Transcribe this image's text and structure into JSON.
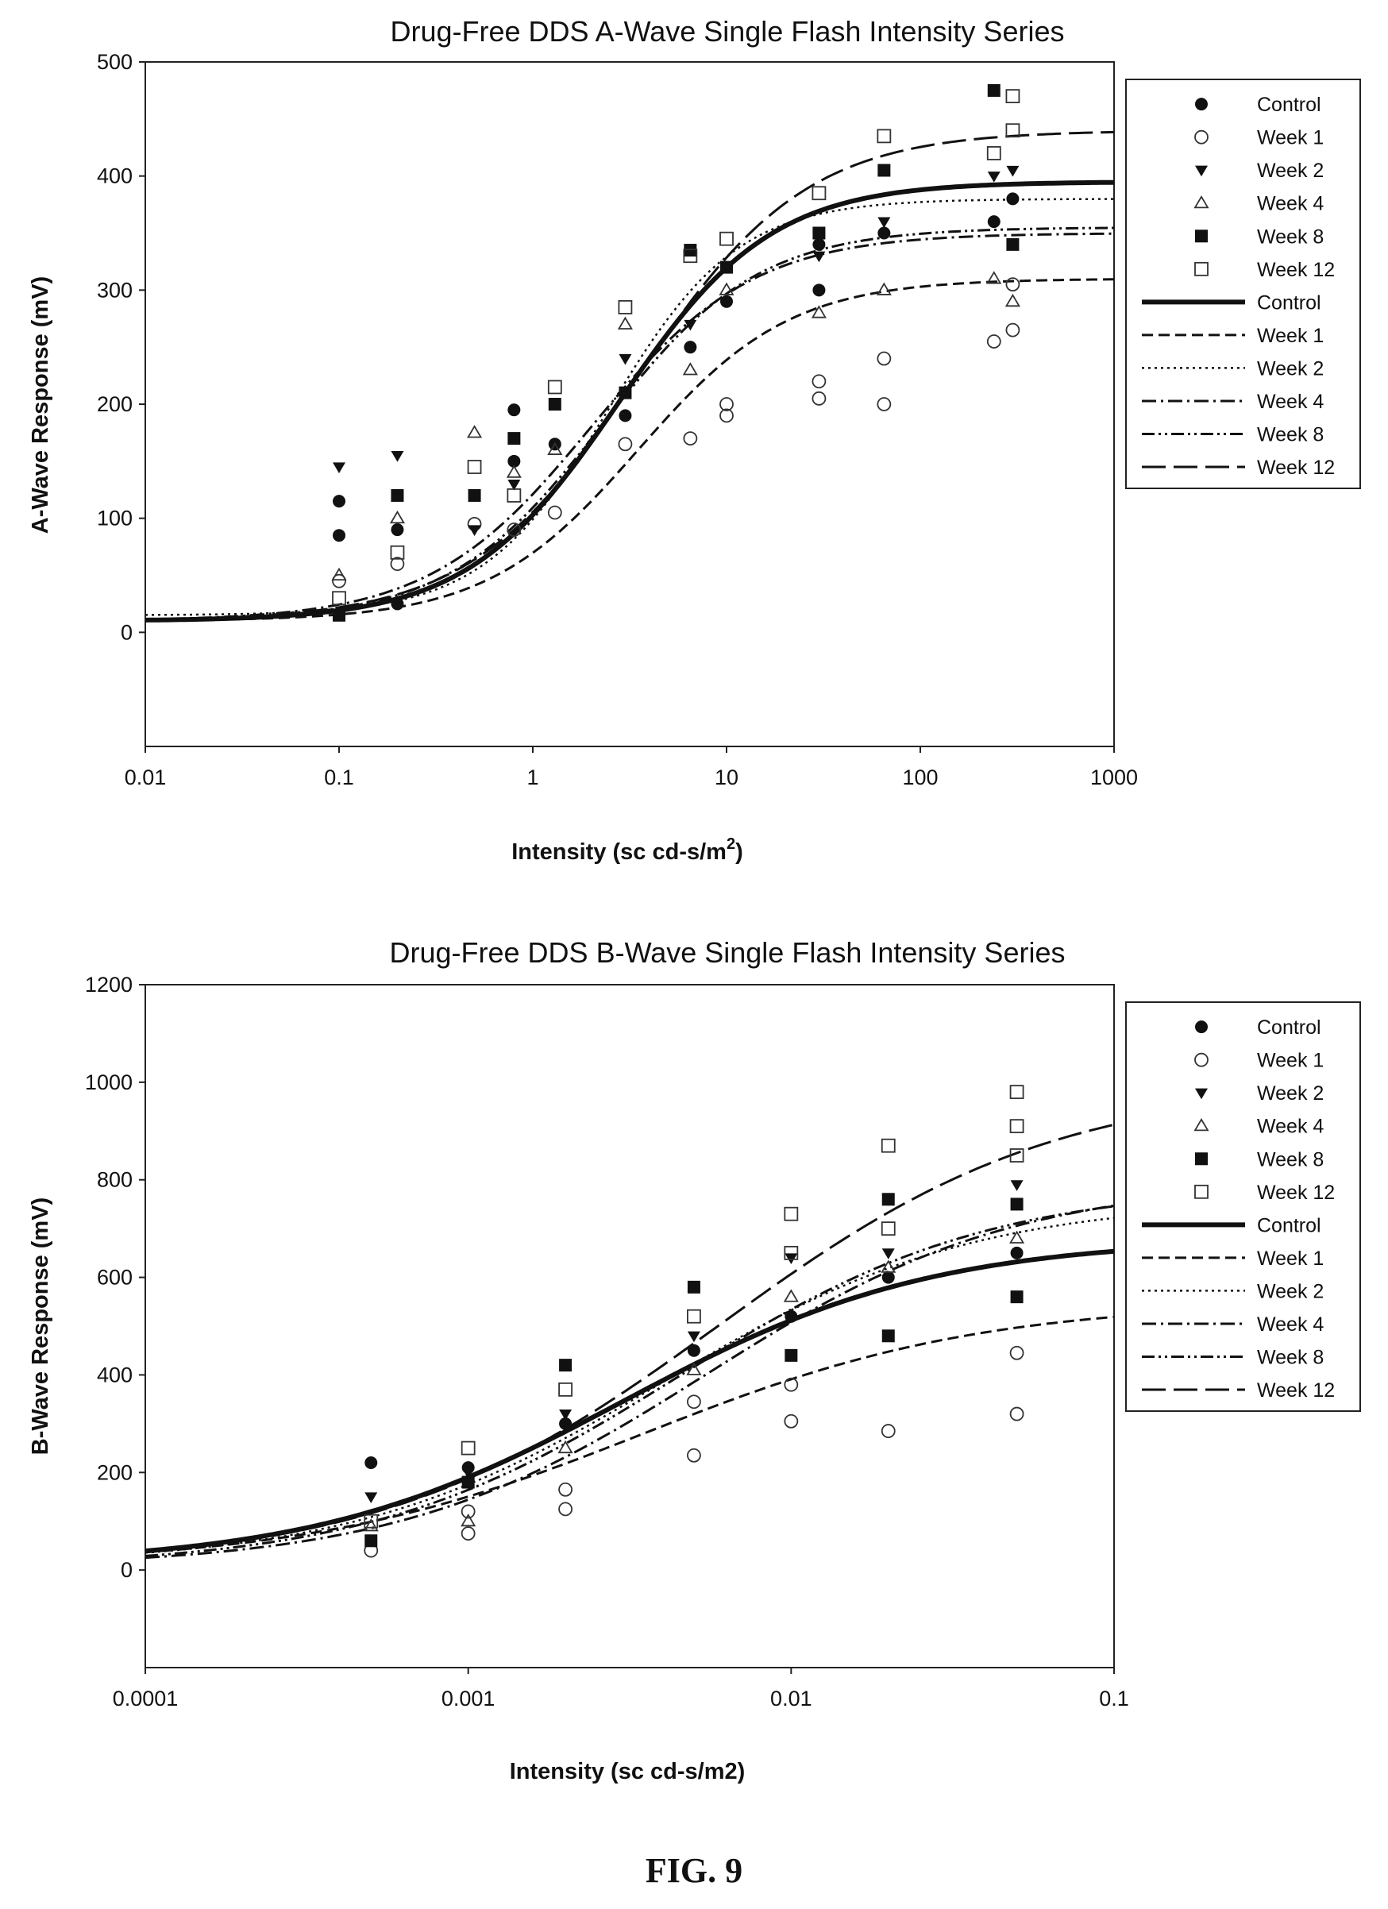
{
  "figure_label": "FIG. 9",
  "chart_data": [
    {
      "type": "scatter",
      "title": "Drug-Free DDS A-Wave Single Flash Intensity Series",
      "xlabel": "Intensity (sc cd-s/m",
      "xlabel_sup": "2",
      "xlabel_close": ")",
      "ylabel": "A-Wave Response (mV)",
      "x_scale": "log",
      "xlim": [
        0.01,
        1000
      ],
      "ylim": [
        -100,
        500
      ],
      "x_ticks": [
        0.01,
        0.1,
        1,
        10,
        100,
        1000
      ],
      "x_tick_labels": [
        "0.01",
        "0.1",
        "1",
        "10",
        "100",
        "1000"
      ],
      "y_ticks": [
        0,
        100,
        200,
        300,
        400,
        500
      ],
      "y_tick_labels": [
        "0",
        "100",
        "200",
        "300",
        "400",
        "500"
      ],
      "grid": false,
      "legend": "right",
      "legend_entries": [
        {
          "label": "Control",
          "kind": "marker",
          "marker": "filled-circle"
        },
        {
          "label": "Week 1",
          "kind": "marker",
          "marker": "open-circle"
        },
        {
          "label": "Week 2",
          "kind": "marker",
          "marker": "filled-triangle-down"
        },
        {
          "label": "Week 4",
          "kind": "marker",
          "marker": "open-triangle"
        },
        {
          "label": "Week 8",
          "kind": "marker",
          "marker": "filled-square"
        },
        {
          "label": "Week 12",
          "kind": "marker",
          "marker": "open-square"
        },
        {
          "label": "Control",
          "kind": "line",
          "dash": "solid-thick"
        },
        {
          "label": "Week 1",
          "kind": "line",
          "dash": "dash"
        },
        {
          "label": "Week 2",
          "kind": "line",
          "dash": "dot"
        },
        {
          "label": "Week 4",
          "kind": "line",
          "dash": "dash-dot"
        },
        {
          "label": "Week 8",
          "kind": "line",
          "dash": "dash-dot-dot"
        },
        {
          "label": "Week 12",
          "kind": "line",
          "dash": "long-dash"
        }
      ],
      "series": [
        {
          "name": "Control",
          "marker": "filled-circle",
          "points": [
            [
              0.1,
              115
            ],
            [
              0.1,
              85
            ],
            [
              0.2,
              25
            ],
            [
              0.2,
              90
            ],
            [
              0.8,
              195
            ],
            [
              0.8,
              150
            ],
            [
              1.3,
              165
            ],
            [
              3,
              190
            ],
            [
              6.5,
              250
            ],
            [
              10,
              290
            ],
            [
              30,
              340
            ],
            [
              30,
              300
            ],
            [
              65,
              350
            ],
            [
              240,
              360
            ],
            [
              300,
              380
            ]
          ]
        },
        {
          "name": "Week 1",
          "marker": "open-circle",
          "points": [
            [
              0.1,
              45
            ],
            [
              0.2,
              60
            ],
            [
              0.5,
              95
            ],
            [
              0.8,
              90
            ],
            [
              1.3,
              105
            ],
            [
              3,
              165
            ],
            [
              6.5,
              170
            ],
            [
              10,
              190
            ],
            [
              10,
              200
            ],
            [
              30,
              205
            ],
            [
              30,
              220
            ],
            [
              65,
              200
            ],
            [
              65,
              240
            ],
            [
              240,
              255
            ],
            [
              300,
              265
            ],
            [
              300,
              305
            ]
          ]
        },
        {
          "name": "Week 2",
          "marker": "filled-triangle-down",
          "points": [
            [
              0.1,
              145
            ],
            [
              0.2,
              155
            ],
            [
              0.5,
              90
            ],
            [
              0.8,
              130
            ],
            [
              1.3,
              200
            ],
            [
              3,
              240
            ],
            [
              6.5,
              270
            ],
            [
              10,
              320
            ],
            [
              30,
              330
            ],
            [
              65,
              360
            ],
            [
              240,
              400
            ],
            [
              300,
              405
            ]
          ]
        },
        {
          "name": "Week 4",
          "marker": "open-triangle",
          "points": [
            [
              0.1,
              50
            ],
            [
              0.2,
              100
            ],
            [
              0.5,
              175
            ],
            [
              0.8,
              140
            ],
            [
              1.3,
              160
            ],
            [
              3,
              270
            ],
            [
              6.5,
              230
            ],
            [
              10,
              300
            ],
            [
              30,
              280
            ],
            [
              65,
              300
            ],
            [
              240,
              310
            ],
            [
              300,
              290
            ]
          ]
        },
        {
          "name": "Week 8",
          "marker": "filled-square",
          "points": [
            [
              0.1,
              15
            ],
            [
              0.2,
              120
            ],
            [
              0.5,
              120
            ],
            [
              0.8,
              170
            ],
            [
              1.3,
              200
            ],
            [
              3,
              210
            ],
            [
              6.5,
              335
            ],
            [
              10,
              320
            ],
            [
              30,
              350
            ],
            [
              65,
              405
            ],
            [
              240,
              475
            ],
            [
              300,
              340
            ]
          ]
        },
        {
          "name": "Week 12",
          "marker": "open-square",
          "points": [
            [
              0.1,
              30
            ],
            [
              0.2,
              70
            ],
            [
              0.5,
              145
            ],
            [
              0.8,
              120
            ],
            [
              1.3,
              215
            ],
            [
              3,
              285
            ],
            [
              6.5,
              330
            ],
            [
              10,
              345
            ],
            [
              30,
              385
            ],
            [
              65,
              435
            ],
            [
              240,
              420
            ],
            [
              300,
              470
            ],
            [
              300,
              440
            ]
          ]
        }
      ],
      "curves": [
        {
          "name": "Control",
          "dash": "solid-thick",
          "bottom": 10,
          "top": 395,
          "x50": 2.8,
          "slope": 0.45
        },
        {
          "name": "Week 1",
          "dash": "dash",
          "bottom": 10,
          "top": 310,
          "x50": 3.5,
          "slope": 0.45
        },
        {
          "name": "Week 2",
          "dash": "dot",
          "bottom": 15,
          "top": 380,
          "x50": 2.5,
          "slope": 0.38
        },
        {
          "name": "Week 4",
          "dash": "dash-dot",
          "bottom": 10,
          "top": 350,
          "x50": 2.0,
          "slope": 0.48
        },
        {
          "name": "Week 8",
          "dash": "dash-dot-dot",
          "bottom": 10,
          "top": 355,
          "x50": 2.3,
          "slope": 0.46
        },
        {
          "name": "Week 12",
          "dash": "long-dash",
          "bottom": 10,
          "top": 440,
          "x50": 3.5,
          "slope": 0.5
        }
      ]
    },
    {
      "type": "scatter",
      "title": "Drug-Free DDS B-Wave Single Flash Intensity Series",
      "xlabel": "Intensity (sc cd-s/m2)",
      "ylabel": "B-Wave Response (mV)",
      "x_scale": "log",
      "xlim": [
        0.0001,
        0.1
      ],
      "ylim": [
        -200,
        1200
      ],
      "x_ticks": [
        0.0001,
        0.001,
        0.01,
        0.1
      ],
      "x_tick_labels": [
        "0.0001",
        "0.001",
        "0.01",
        "0.1"
      ],
      "y_ticks": [
        0,
        200,
        400,
        600,
        800,
        1000,
        1200
      ],
      "y_tick_labels": [
        "0",
        "200",
        "400",
        "600",
        "800",
        "1000",
        "1200"
      ],
      "grid": false,
      "legend": "right",
      "legend_entries": [
        {
          "label": "Control",
          "kind": "marker",
          "marker": "filled-circle"
        },
        {
          "label": "Week 1",
          "kind": "marker",
          "marker": "open-circle"
        },
        {
          "label": "Week 2",
          "kind": "marker",
          "marker": "filled-triangle-down"
        },
        {
          "label": "Week 4",
          "kind": "marker",
          "marker": "open-triangle"
        },
        {
          "label": "Week 8",
          "kind": "marker",
          "marker": "filled-square"
        },
        {
          "label": "Week 12",
          "kind": "marker",
          "marker": "open-square"
        },
        {
          "label": "Control",
          "kind": "line",
          "dash": "solid-thick"
        },
        {
          "label": "Week 1",
          "kind": "line",
          "dash": "dash"
        },
        {
          "label": "Week 2",
          "kind": "line",
          "dash": "dot"
        },
        {
          "label": "Week 4",
          "kind": "line",
          "dash": "dash-dot"
        },
        {
          "label": "Week 8",
          "kind": "line",
          "dash": "dash-dot-dot"
        },
        {
          "label": "Week 12",
          "kind": "line",
          "dash": "long-dash"
        }
      ],
      "series": [
        {
          "name": "Control",
          "marker": "filled-circle",
          "points": [
            [
              0.0005,
              220
            ],
            [
              0.001,
              210
            ],
            [
              0.002,
              300
            ],
            [
              0.005,
              450
            ],
            [
              0.01,
              520
            ],
            [
              0.02,
              600
            ],
            [
              0.05,
              650
            ]
          ]
        },
        {
          "name": "Week 1",
          "marker": "open-circle",
          "points": [
            [
              0.0005,
              40
            ],
            [
              0.001,
              75
            ],
            [
              0.001,
              120
            ],
            [
              0.002,
              125
            ],
            [
              0.002,
              165
            ],
            [
              0.005,
              235
            ],
            [
              0.005,
              345
            ],
            [
              0.01,
              305
            ],
            [
              0.01,
              380
            ],
            [
              0.02,
              285
            ],
            [
              0.05,
              320
            ],
            [
              0.05,
              445
            ]
          ]
        },
        {
          "name": "Week 2",
          "marker": "filled-triangle-down",
          "points": [
            [
              0.0005,
              150
            ],
            [
              0.001,
              200
            ],
            [
              0.002,
              320
            ],
            [
              0.005,
              480
            ],
            [
              0.01,
              640
            ],
            [
              0.02,
              650
            ],
            [
              0.05,
              790
            ]
          ]
        },
        {
          "name": "Week 4",
          "marker": "open-triangle",
          "points": [
            [
              0.0005,
              90
            ],
            [
              0.001,
              100
            ],
            [
              0.002,
              250
            ],
            [
              0.005,
              410
            ],
            [
              0.01,
              560
            ],
            [
              0.02,
              620
            ],
            [
              0.05,
              680
            ]
          ]
        },
        {
          "name": "Week 8",
          "marker": "filled-square",
          "points": [
            [
              0.0005,
              60
            ],
            [
              0.001,
              180
            ],
            [
              0.002,
              420
            ],
            [
              0.005,
              580
            ],
            [
              0.01,
              440
            ],
            [
              0.02,
              760
            ],
            [
              0.02,
              480
            ],
            [
              0.05,
              560
            ],
            [
              0.05,
              750
            ]
          ]
        },
        {
          "name": "Week 12",
          "marker": "open-square",
          "points": [
            [
              0.0005,
              100
            ],
            [
              0.001,
              250
            ],
            [
              0.002,
              370
            ],
            [
              0.005,
              520
            ],
            [
              0.01,
              730
            ],
            [
              0.01,
              650
            ],
            [
              0.02,
              870
            ],
            [
              0.02,
              700
            ],
            [
              0.05,
              980
            ],
            [
              0.05,
              910
            ],
            [
              0.05,
              850
            ]
          ]
        }
      ],
      "curves": [
        {
          "name": "Control",
          "dash": "solid-thick",
          "bottom": 10,
          "top": 680,
          "x50": 0.003,
          "slope": 0.55
        },
        {
          "name": "Week 1",
          "dash": "dash",
          "bottom": 10,
          "top": 550,
          "x50": 0.0035,
          "slope": 0.6
        },
        {
          "name": "Week 2",
          "dash": "dot",
          "bottom": 10,
          "top": 760,
          "x50": 0.004,
          "slope": 0.55
        },
        {
          "name": "Week 4",
          "dash": "dash-dot",
          "bottom": 5,
          "top": 800,
          "x50": 0.0055,
          "slope": 0.55
        },
        {
          "name": "Week 8",
          "dash": "dash-dot-dot",
          "bottom": 5,
          "top": 790,
          "x50": 0.0045,
          "slope": 0.55
        },
        {
          "name": "Week 12",
          "dash": "long-dash",
          "bottom": 5,
          "top": 1000,
          "x50": 0.006,
          "slope": 0.6
        }
      ]
    }
  ]
}
